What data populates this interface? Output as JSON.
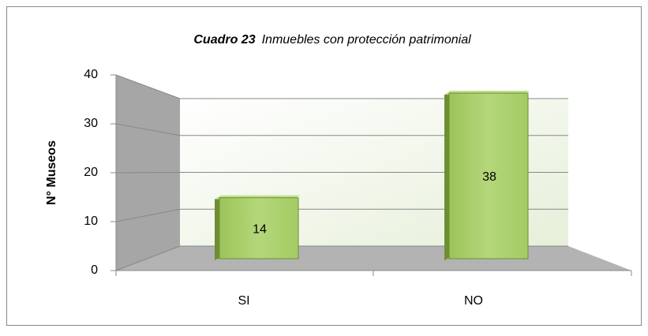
{
  "chart_data": {
    "type": "bar3d",
    "title_label": "Cuadro 23",
    "title": "Inmuebles con protección patrimonial",
    "y_label": "N° Museos",
    "categories": [
      "SI",
      "NO"
    ],
    "values": [
      14,
      38
    ],
    "color": "#a9cf6a",
    "ylim": [
      0,
      40
    ],
    "yticks": [
      0,
      10,
      20,
      30,
      40
    ],
    "grid": true
  }
}
